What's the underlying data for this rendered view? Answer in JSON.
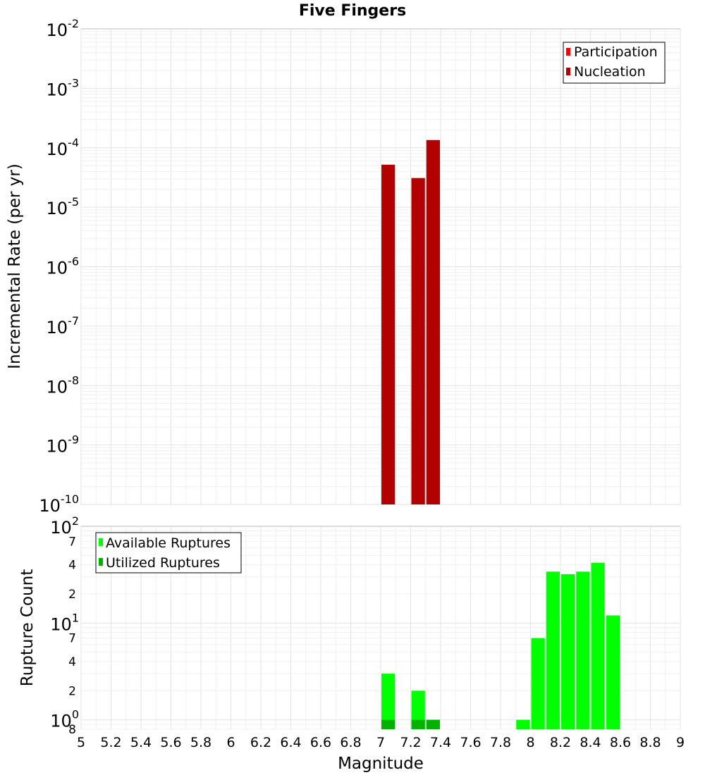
{
  "chart_data": [
    {
      "type": "bar",
      "title": "Five Fingers",
      "ylabel": "Incremental Rate (per yr)",
      "yscale": "log",
      "ylim": [
        1e-10,
        0.01
      ],
      "xlim": [
        5,
        9
      ],
      "y_ticks": [
        {
          "base": "10",
          "exp": "-2"
        },
        {
          "base": "10",
          "exp": "-3"
        },
        {
          "base": "10",
          "exp": "-4"
        },
        {
          "base": "10",
          "exp": "-5"
        },
        {
          "base": "10",
          "exp": "-6"
        },
        {
          "base": "10",
          "exp": "-7"
        },
        {
          "base": "10",
          "exp": "-8"
        },
        {
          "base": "10",
          "exp": "-9"
        },
        {
          "base": "10",
          "exp": "-10"
        }
      ],
      "legend": {
        "position": "top-right",
        "entries": [
          "Participation",
          "Nucleation"
        ]
      },
      "colors": {
        "participation": "#ff0000",
        "nucleation": "#b30000"
      },
      "series": [
        {
          "name": "Participation",
          "x": [
            7.05,
            7.25,
            7.35
          ],
          "values": [
            5.2e-05,
            3.1e-05,
            0.000135
          ]
        },
        {
          "name": "Nucleation",
          "x": [
            7.05,
            7.25,
            7.35
          ],
          "values": [
            5.2e-05,
            3.1e-05,
            0.000135
          ]
        }
      ],
      "bin_width": 0.1
    },
    {
      "type": "bar",
      "xlabel": "Magnitude",
      "ylabel": "Rupture Count",
      "yscale": "log",
      "ylim": [
        0.8,
        100
      ],
      "xlim": [
        5,
        9
      ],
      "x_ticks": [
        "5",
        "5.2",
        "5.4",
        "5.6",
        "5.8",
        "6",
        "6.2",
        "6.4",
        "6.6",
        "6.8",
        "7",
        "7.2",
        "7.4",
        "7.6",
        "7.8",
        "8",
        "8.2",
        "8.4",
        "8.6",
        "8.8",
        "9"
      ],
      "y_major_ticks": [
        {
          "base": "10",
          "exp": "2",
          "value": 100
        },
        {
          "base": "10",
          "exp": "1",
          "value": 10
        },
        {
          "base": "10",
          "exp": "0",
          "value": 1
        }
      ],
      "y_minor_ticks": [
        {
          "label": "7",
          "value": 70
        },
        {
          "label": "4",
          "value": 40
        },
        {
          "label": "2",
          "value": 20
        },
        {
          "label": "7",
          "value": 7
        },
        {
          "label": "4",
          "value": 4
        },
        {
          "label": "2",
          "value": 2
        },
        {
          "label": "8",
          "value": 0.8
        }
      ],
      "legend": {
        "position": "top-left",
        "entries": [
          "Available Ruptures",
          "Utilized Ruptures"
        ]
      },
      "colors": {
        "available": "#00ff00",
        "utilized": "#00b300"
      },
      "series": [
        {
          "name": "Available Ruptures",
          "x": [
            7.05,
            7.25,
            7.35,
            7.95,
            8.05,
            8.15,
            8.25,
            8.35,
            8.45,
            8.55
          ],
          "values": [
            3,
            2,
            1,
            1,
            7,
            34,
            32,
            34,
            42,
            12
          ]
        },
        {
          "name": "Utilized Ruptures",
          "x": [
            7.05,
            7.25,
            7.35
          ],
          "values": [
            1,
            1,
            1
          ]
        }
      ],
      "bin_width": 0.1
    }
  ]
}
